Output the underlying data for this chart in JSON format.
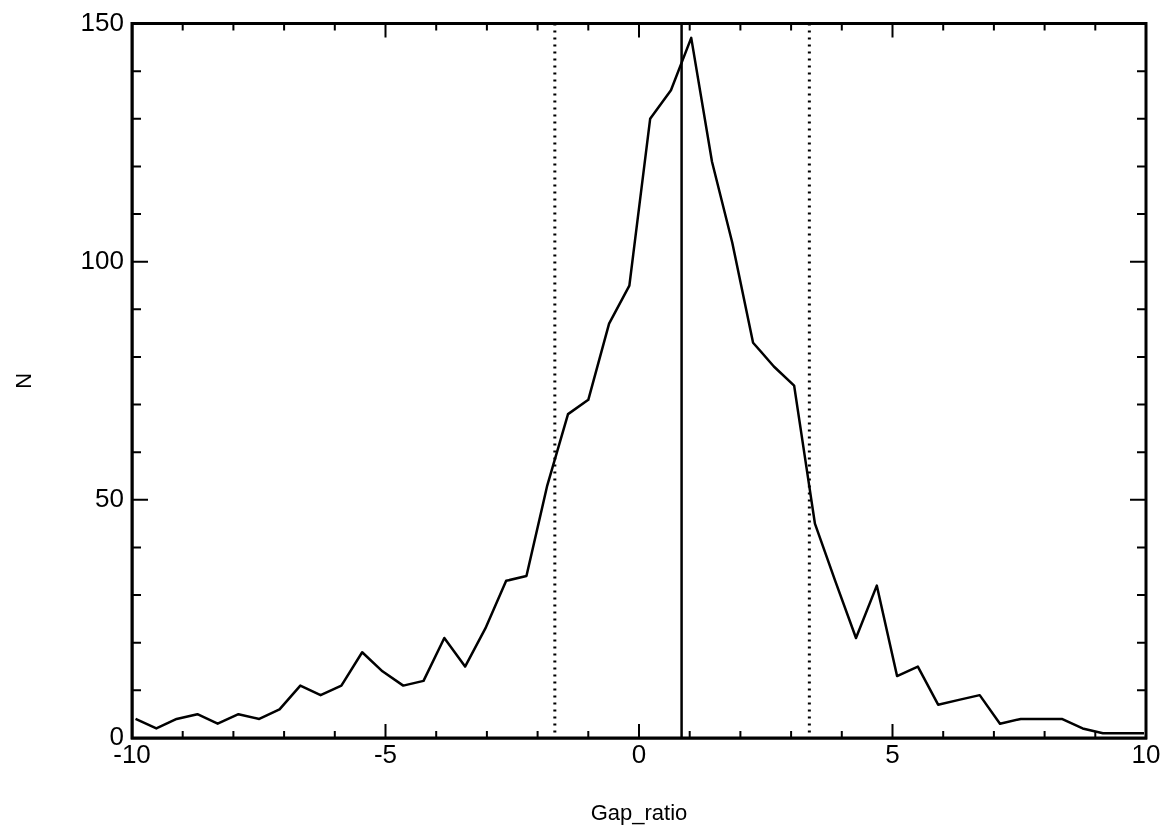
{
  "chart_data": {
    "type": "line",
    "xlabel": "Gap_ratio",
    "ylabel": "N",
    "x": [
      -9.93,
      -9.52,
      -9.12,
      -8.71,
      -8.31,
      -7.9,
      -7.49,
      -7.09,
      -6.68,
      -6.28,
      -5.87,
      -5.46,
      -5.06,
      -4.65,
      -4.25,
      -3.84,
      -3.43,
      -3.03,
      -2.62,
      -2.22,
      -1.81,
      -1.4,
      -1.0,
      -0.59,
      -0.19,
      0.22,
      0.63,
      1.03,
      1.44,
      1.84,
      2.25,
      2.66,
      3.06,
      3.47,
      3.87,
      4.28,
      4.69,
      5.09,
      5.5,
      5.9,
      6.31,
      6.72,
      7.12,
      7.53,
      7.93,
      8.34,
      8.75,
      9.15,
      9.56,
      9.96
    ],
    "series": [
      {
        "color": "#000000",
        "values": [
          4,
          2,
          4,
          5,
          3,
          5,
          4,
          6,
          11,
          9,
          11,
          18,
          14,
          11,
          12,
          21,
          15,
          23,
          33,
          34,
          53,
          68,
          71,
          87,
          95,
          130,
          136,
          147,
          121,
          104,
          83,
          78,
          74,
          45,
          33,
          21,
          32,
          13,
          15,
          7,
          8,
          9,
          3,
          4,
          4,
          4,
          2,
          1,
          1,
          1
        ]
      }
    ],
    "xlim": [
      -10,
      10
    ],
    "xticks": [
      -10,
      {
        "value": -9,
        "label": null
      },
      {
        "value": -8,
        "label": null
      },
      {
        "value": -7,
        "label": null
      },
      {
        "value": -6,
        "label": null
      },
      -5,
      {
        "value": -4,
        "label": null
      },
      {
        "value": -3,
        "label": null
      },
      {
        "value": -2,
        "label": null
      },
      {
        "value": -1,
        "label": null
      },
      0,
      {
        "value": 1,
        "label": null
      },
      {
        "value": 2,
        "label": null
      },
      {
        "value": 3,
        "label": null
      },
      {
        "value": 4,
        "label": null
      },
      5,
      {
        "value": 6,
        "label": null
      },
      {
        "value": 7,
        "label": null
      },
      {
        "value": 8,
        "label": null
      },
      {
        "value": 9,
        "label": null
      },
      10
    ],
    "ylim": [
      0,
      150
    ],
    "yticks": [
      0,
      {
        "value": 10,
        "label": null
      },
      {
        "value": 20,
        "label": null
      },
      {
        "value": 30,
        "label": null
      },
      {
        "value": 40,
        "label": null
      },
      50,
      {
        "value": 60,
        "label": null
      },
      {
        "value": 70,
        "label": null
      },
      {
        "value": 80,
        "label": null
      },
      {
        "value": 90,
        "label": null
      },
      100,
      {
        "value": 110,
        "label": null
      },
      {
        "value": 120,
        "label": null
      },
      {
        "value": 130,
        "label": null
      },
      {
        "value": 140,
        "label": null
      },
      150
    ],
    "ref_lines": [
      {
        "axis": "x",
        "value": 0.84,
        "color": "#000000",
        "line_style": "solid"
      },
      {
        "axis": "x",
        "value": -1.66,
        "color": "#000000",
        "line_style": "dotted"
      },
      {
        "axis": "x",
        "value": 3.36,
        "color": "#000000",
        "line_style": "dotted"
      }
    ],
    "grid": false,
    "legend": false,
    "marker": "none",
    "line_style": "solid"
  }
}
